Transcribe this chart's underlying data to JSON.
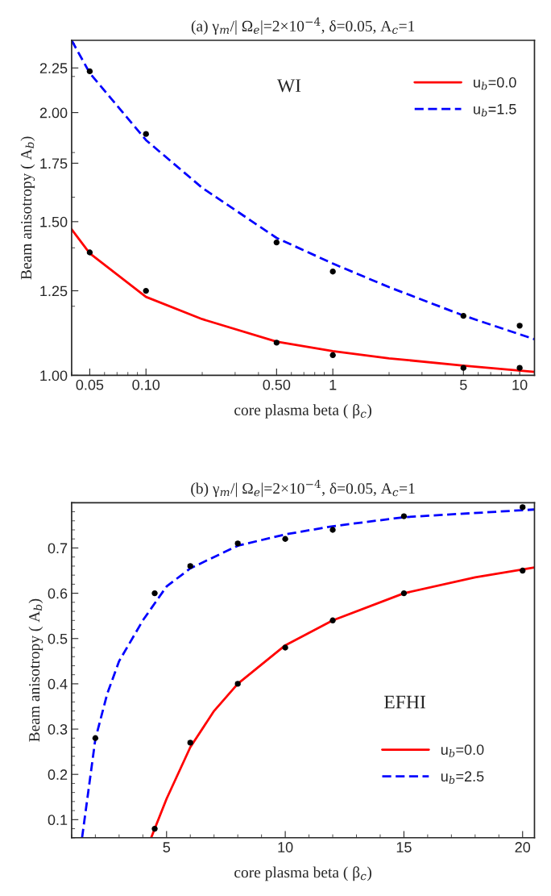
{
  "chart_data": [
    {
      "type": "line",
      "title": "(a) γ$_{m}$/| Ω$_{e}$|=2×10$^{−4}$, δ=0.05, A$_{c}$=1",
      "xlabel": "core plasma beta ( β$_{c}$)",
      "ylabel": "Beam anisotropy ( A$_{b}$)",
      "log": "xy",
      "xlim": [
        0.04,
        12
      ],
      "ylim": [
        1.0,
        2.42
      ],
      "xticks": [
        0.05,
        {
          "value": 0.1,
          "label": "0.10"
        },
        {
          "value": 0.5,
          "label": "0.50"
        },
        1,
        5,
        10
      ],
      "yticks": [
        {
          "value": 1.0,
          "label": "1.00"
        },
        1.25,
        {
          "value": 1.5,
          "label": "1.50"
        },
        1.75,
        {
          "value": 2.0,
          "label": "2.00"
        },
        2.25
      ],
      "grid": false,
      "legend": "top right",
      "annotations": [
        "WI"
      ],
      "series": [
        {
          "name": "u$_{b}$=0.0",
          "color": "#ff0000",
          "line_style": "solid",
          "x": [
            0.04,
            0.05,
            0.1,
            0.2,
            0.5,
            1,
            2,
            5,
            12
          ],
          "values": [
            1.47,
            1.38,
            1.23,
            1.16,
            1.093,
            1.066,
            1.046,
            1.026,
            1.009
          ]
        },
        {
          "name": "u$_{b}$=1.5",
          "color": "#0000ff",
          "line_style": "dashed",
          "x": [
            0.04,
            0.05,
            0.1,
            0.2,
            0.5,
            1,
            2,
            5,
            12
          ],
          "values": [
            2.42,
            2.22,
            1.86,
            1.64,
            1.437,
            1.343,
            1.262,
            1.171,
            1.1
          ]
        },
        {
          "type": "scatter",
          "color": "#000000",
          "marker": "circle",
          "x": [
            0.05,
            0.1,
            0.5,
            1,
            5,
            10
          ],
          "values": [
            1.383,
            1.25,
            1.09,
            1.055,
            1.02,
            1.02
          ]
        },
        {
          "type": "scatter",
          "color": "#000000",
          "marker": "circle",
          "x": [
            0.05,
            0.1,
            0.5,
            1,
            5,
            10
          ],
          "values": [
            2.23,
            1.89,
            1.42,
            1.315,
            1.17,
            1.14
          ]
        }
      ]
    },
    {
      "type": "line",
      "title": "(b) γ$_{m}$/| Ω$_{e}$|=2×10$^{−4}$, δ=0.05, A$_{c}$=1",
      "xlabel": "core plasma beta ( β$_{c}$)",
      "ylabel": "Beam anisotropy ( A$_{b}$)",
      "xlim": [
        1,
        20.5
      ],
      "ylim": [
        0.06,
        0.8
      ],
      "xticks": [
        5,
        10,
        15,
        20
      ],
      "yticks": [
        0.1,
        0.2,
        0.3,
        0.4,
        0.5,
        0.6,
        0.7
      ],
      "grid": false,
      "legend": "bottom right",
      "annotations": [
        "EFHI"
      ],
      "series": [
        {
          "name": "u$_{b}$=0.0",
          "color": "#ff0000",
          "line_style": "solid",
          "x": [
            4.35,
            5,
            6,
            7,
            8,
            10,
            12,
            15,
            18,
            20.5
          ],
          "values": [
            0.06,
            0.146,
            0.26,
            0.34,
            0.4,
            0.485,
            0.54,
            0.6,
            0.635,
            0.657
          ]
        },
        {
          "name": "u$_{b}$=2.5",
          "color": "#0000ff",
          "line_style": "dashed",
          "x": [
            1.44,
            2,
            2.5,
            3,
            4,
            5,
            6,
            8,
            10,
            12,
            15,
            20.5
          ],
          "values": [
            0.06,
            0.278,
            0.378,
            0.45,
            0.54,
            0.615,
            0.655,
            0.705,
            0.73,
            0.748,
            0.768,
            0.785
          ]
        },
        {
          "type": "scatter",
          "color": "#000000",
          "marker": "circle",
          "x": [
            4.5,
            6,
            8,
            10,
            12,
            15,
            20
          ],
          "values": [
            0.08,
            0.27,
            0.4,
            0.48,
            0.54,
            0.6,
            0.65
          ]
        },
        {
          "type": "scatter",
          "color": "#000000",
          "marker": "circle",
          "x": [
            2,
            4.5,
            6,
            8,
            10,
            12,
            15,
            20
          ],
          "values": [
            0.28,
            0.6,
            0.66,
            0.71,
            0.72,
            0.74,
            0.77,
            0.79
          ]
        }
      ]
    }
  ]
}
